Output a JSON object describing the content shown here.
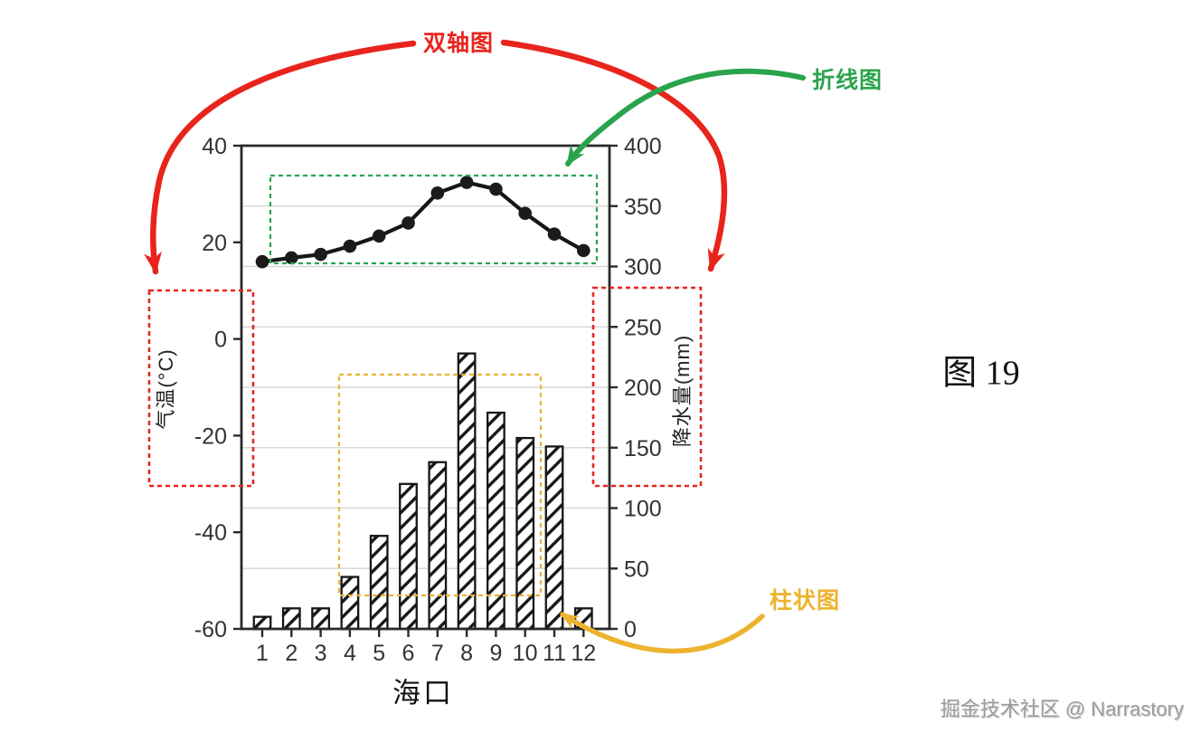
{
  "figure": {
    "caption": "图 19",
    "watermark": "掘金技术社区 @ Narrastory"
  },
  "annotations": {
    "dual_axis": {
      "label": "双轴图",
      "color": "#e8251d"
    },
    "line_chart": {
      "label": "折线图",
      "color": "#2aa44c"
    },
    "bar_chart": {
      "label": "柱状图",
      "color": "#edb32f"
    }
  },
  "chart_data": {
    "type": "dual-axis line + bar (climate chart)",
    "categories": [
      "1",
      "2",
      "3",
      "4",
      "5",
      "6",
      "7",
      "8",
      "9",
      "10",
      "11",
      "12"
    ],
    "xlabel": "海口",
    "left_axis": {
      "title": "气温(°C)",
      "min": -60,
      "max": 40,
      "ticks": [
        40,
        20,
        0,
        -20,
        -40,
        -60
      ]
    },
    "right_axis": {
      "title": "降水量(mm)",
      "min": 0,
      "max": 400,
      "ticks": [
        400,
        350,
        300,
        250,
        200,
        150,
        100,
        50,
        0
      ]
    },
    "series": [
      {
        "name": "气温",
        "type": "line",
        "axis": "left",
        "unit": "°C",
        "values": [
          16.0,
          16.8,
          17.5,
          19.2,
          21.3,
          24.0,
          30.2,
          32.4,
          31.0,
          26.0,
          21.7,
          18.3
        ]
      },
      {
        "name": "降水量",
        "type": "bar",
        "axis": "right",
        "unit": "mm",
        "values": [
          10,
          17,
          17,
          43,
          77,
          120,
          138,
          228,
          179,
          158,
          151,
          17
        ]
      }
    ],
    "grid": "horizontal gridlines every 50 mm (right axis)",
    "legend": "none",
    "colors": {
      "ink": "#161616",
      "axis": "#2a2a2a",
      "gridline": "#d9d9d9",
      "tick_text": "#333333"
    }
  }
}
